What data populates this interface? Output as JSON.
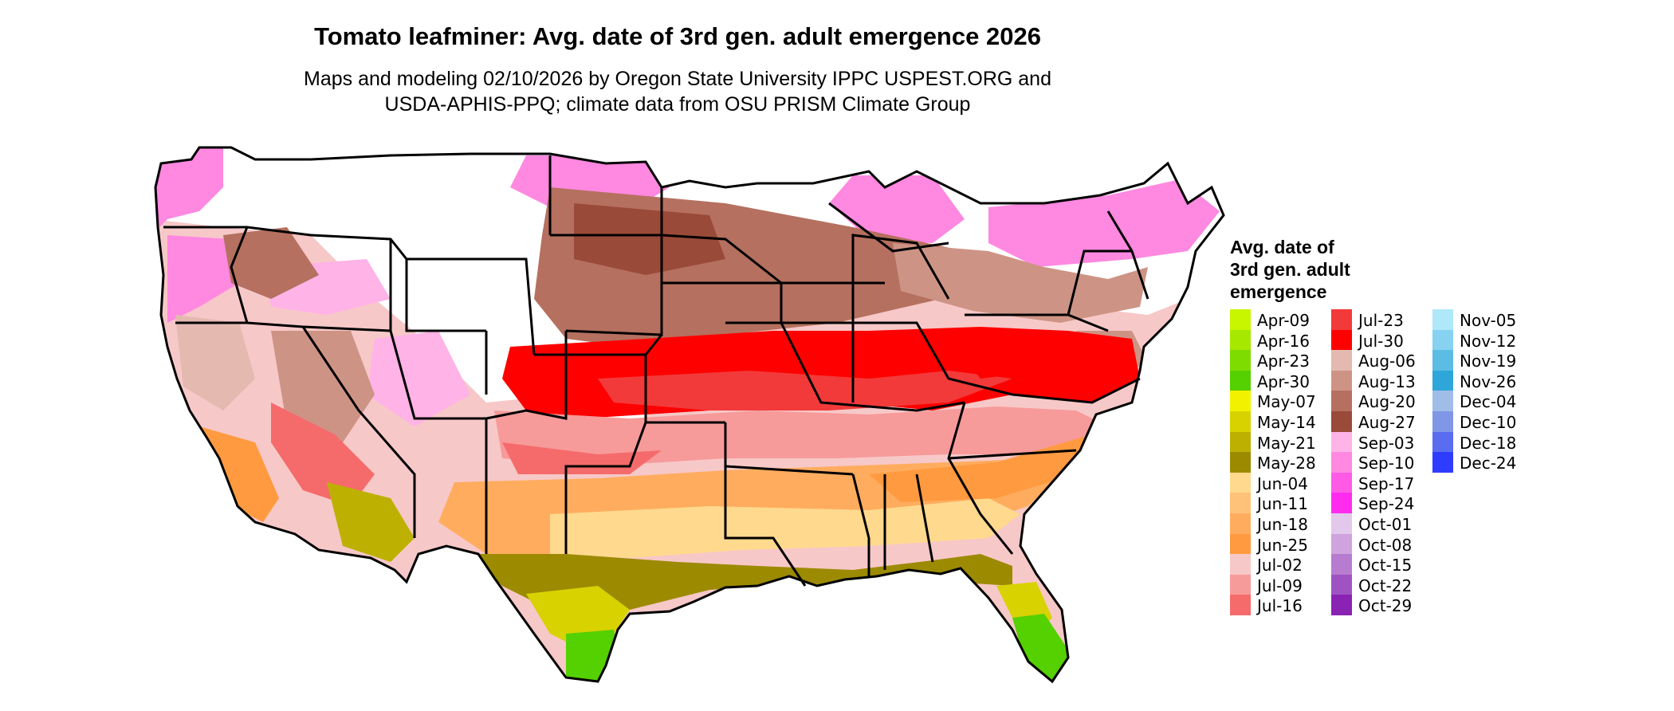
{
  "title": "Tomato leafminer: Avg. date of 3rd gen. adult emergence 2026",
  "subtitle_line1": "Maps and modeling 02/10/2026 by Oregon State University IPPC USPEST.ORG and",
  "subtitle_line2": "USDA-APHIS-PPQ; climate data from OSU PRISM Climate Group",
  "legend": {
    "title_line1": "Avg. date of",
    "title_line2": "3rd gen. adult",
    "title_line3": "emergence",
    "items": [
      {
        "label": "Apr-09",
        "color": "#c8f500"
      },
      {
        "label": "Apr-16",
        "color": "#a6e800"
      },
      {
        "label": "Apr-23",
        "color": "#7fdc00"
      },
      {
        "label": "Apr-30",
        "color": "#55d000"
      },
      {
        "label": "May-07",
        "color": "#f2f200"
      },
      {
        "label": "May-14",
        "color": "#d8d200"
      },
      {
        "label": "May-21",
        "color": "#bdb000"
      },
      {
        "label": "May-28",
        "color": "#9c8a00"
      },
      {
        "label": "Jun-04",
        "color": "#ffd98e"
      },
      {
        "label": "Jun-11",
        "color": "#ffc278"
      },
      {
        "label": "Jun-18",
        "color": "#ffac5e"
      },
      {
        "label": "Jun-25",
        "color": "#ff9a40"
      },
      {
        "label": "Jul-02",
        "color": "#f7c8c8"
      },
      {
        "label": "Jul-09",
        "color": "#f79a9a"
      },
      {
        "label": "Jul-16",
        "color": "#f56b6b"
      },
      {
        "label": "Jul-23",
        "color": "#f23a3a"
      },
      {
        "label": "Jul-30",
        "color": "#ff0000"
      },
      {
        "label": "Aug-06",
        "color": "#e3b9b0"
      },
      {
        "label": "Aug-13",
        "color": "#cd9486"
      },
      {
        "label": "Aug-20",
        "color": "#b5705f"
      },
      {
        "label": "Aug-27",
        "color": "#9a4a38"
      },
      {
        "label": "Sep-03",
        "color": "#ffb3e6"
      },
      {
        "label": "Sep-10",
        "color": "#ff88e0"
      },
      {
        "label": "Sep-17",
        "color": "#ff5ae6"
      },
      {
        "label": "Sep-24",
        "color": "#ff2cf0"
      },
      {
        "label": "Oct-01",
        "color": "#e2c8ea"
      },
      {
        "label": "Oct-08",
        "color": "#cfa3dd"
      },
      {
        "label": "Oct-15",
        "color": "#b77ccf"
      },
      {
        "label": "Oct-22",
        "color": "#9f52c1"
      },
      {
        "label": "Oct-29",
        "color": "#8a22b4"
      },
      {
        "label": "Nov-05",
        "color": "#aee8f9"
      },
      {
        "label": "Nov-12",
        "color": "#86d2f0"
      },
      {
        "label": "Nov-19",
        "color": "#5cbde4"
      },
      {
        "label": "Nov-26",
        "color": "#2fa6da"
      },
      {
        "label": "Dec-04",
        "color": "#9fbde7"
      },
      {
        "label": "Dec-10",
        "color": "#7f97e6"
      },
      {
        "label": "Dec-18",
        "color": "#5a6cf0"
      },
      {
        "label": "Dec-24",
        "color": "#2e3cff"
      }
    ]
  }
}
